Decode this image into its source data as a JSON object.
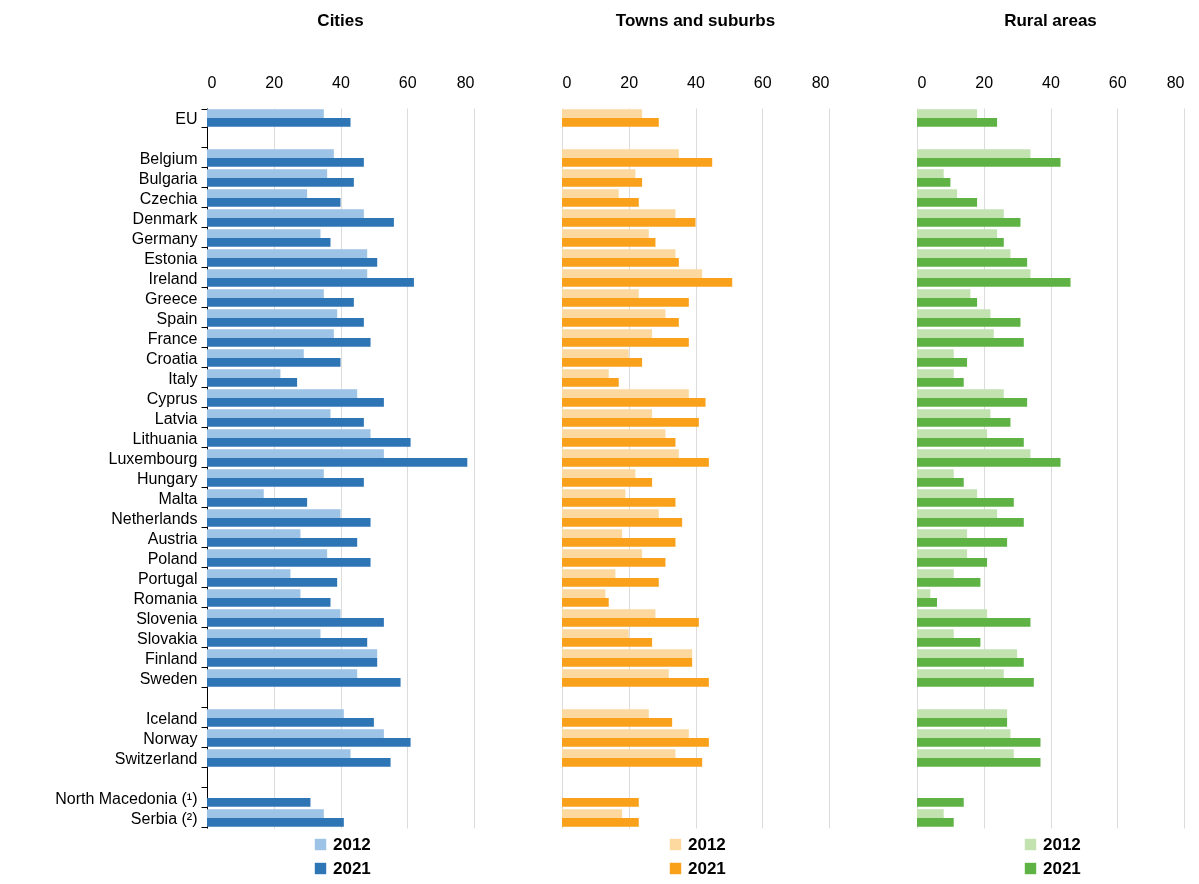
{
  "chart_data": [
    {
      "type": "bar",
      "orientation": "horizontal",
      "title": "Cities",
      "categories": [
        "EU",
        null,
        "Belgium",
        "Bulgaria",
        "Czechia",
        "Denmark",
        "Germany",
        "Estonia",
        "Ireland",
        "Greece",
        "Spain",
        "France",
        "Croatia",
        "Italy",
        "Cyprus",
        "Latvia",
        "Lithuania",
        "Luxembourg",
        "Hungary",
        "Malta",
        "Netherlands",
        "Austria",
        "Poland",
        "Portugal",
        "Romania",
        "Slovenia",
        "Slovakia",
        "Finland",
        "Sweden",
        null,
        "Iceland",
        "Norway",
        "Switzerland",
        null,
        "North Macedonia (¹)",
        "Serbia (²)"
      ],
      "xlim": [
        0,
        80
      ],
      "xticks": [
        0,
        20,
        40,
        60,
        80
      ],
      "grid": "x",
      "legend": "bottom",
      "series": [
        {
          "name": "2012",
          "color": "#9dc3e6",
          "values": [
            35,
            null,
            38,
            36,
            30,
            47,
            34,
            48,
            48,
            35,
            39,
            38,
            29,
            22,
            45,
            37,
            49,
            53,
            35,
            17,
            40,
            28,
            36,
            25,
            28,
            40,
            34,
            51,
            45,
            null,
            41,
            53,
            43,
            null,
            null,
            35
          ]
        },
        {
          "name": "2021",
          "color": "#2e75b6",
          "values": [
            43,
            null,
            47,
            44,
            40,
            56,
            37,
            51,
            62,
            44,
            47,
            49,
            40,
            27,
            53,
            47,
            61,
            78,
            47,
            30,
            49,
            45,
            49,
            39,
            37,
            53,
            48,
            51,
            58,
            null,
            50,
            61,
            55,
            null,
            31,
            41
          ]
        }
      ]
    },
    {
      "type": "bar",
      "orientation": "horizontal",
      "title": "Towns and suburbs",
      "xlim": [
        0,
        80
      ],
      "xticks": [
        0,
        20,
        40,
        60,
        80
      ],
      "grid": "x",
      "legend": "bottom",
      "tick_labels": "x",
      "series": [
        {
          "name": "2012",
          "color": "#fdd9a0",
          "values": [
            24,
            null,
            35,
            22,
            17,
            34,
            26,
            34,
            42,
            23,
            31,
            27,
            20,
            14,
            38,
            27,
            31,
            35,
            22,
            19,
            29,
            18,
            24,
            16,
            13,
            28,
            20,
            39,
            32,
            null,
            26,
            38,
            34,
            null,
            null,
            18
          ]
        },
        {
          "name": "2021",
          "color": "#f9a11b",
          "values": [
            29,
            null,
            45,
            24,
            23,
            40,
            28,
            35,
            51,
            38,
            35,
            38,
            24,
            17,
            43,
            41,
            34,
            44,
            27,
            34,
            36,
            34,
            31,
            29,
            14,
            41,
            27,
            39,
            44,
            null,
            33,
            44,
            42,
            null,
            23,
            23
          ]
        }
      ]
    },
    {
      "type": "bar",
      "orientation": "horizontal",
      "title": "Rural areas",
      "xlim": [
        0,
        80
      ],
      "xticks": [
        0,
        20,
        40,
        60,
        80
      ],
      "grid": "x",
      "legend": "bottom",
      "tick_labels": "x",
      "series": [
        {
          "name": "2012",
          "color": "#c2e2b0",
          "values": [
            18,
            null,
            34,
            8,
            12,
            26,
            24,
            28,
            34,
            16,
            22,
            23,
            11,
            11,
            26,
            22,
            21,
            34,
            11,
            18,
            24,
            15,
            15,
            11,
            4,
            21,
            11,
            30,
            26,
            null,
            27,
            28,
            29,
            null,
            null,
            8
          ]
        },
        {
          "name": "2021",
          "color": "#5eb344",
          "values": [
            24,
            null,
            43,
            10,
            18,
            31,
            26,
            33,
            46,
            18,
            31,
            32,
            15,
            14,
            33,
            28,
            32,
            43,
            14,
            29,
            32,
            27,
            21,
            19,
            6,
            34,
            19,
            32,
            35,
            null,
            27,
            37,
            37,
            null,
            14,
            11
          ]
        }
      ]
    }
  ]
}
